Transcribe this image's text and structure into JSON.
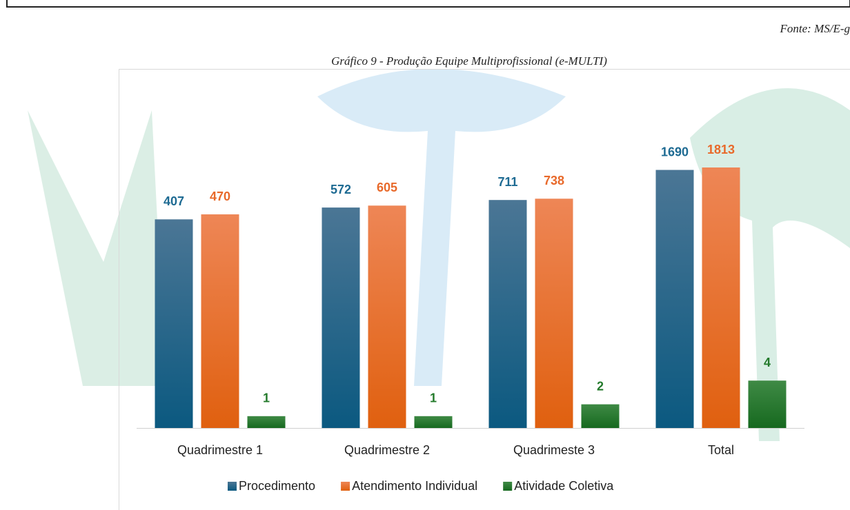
{
  "source": "Fonte: MS/E-g",
  "chart_data": {
    "type": "bar",
    "title": "Gráfico 9 - Produção Equipe Multiprofissional (e-MULTI)",
    "categories": [
      "Quadrimestre 1",
      "Quadrimestre 2",
      "Quadrimeste 3",
      "Total"
    ],
    "series": [
      {
        "name": "Procedimento",
        "color": "#1d6a92",
        "values": [
          407,
          572,
          711,
          1690
        ]
      },
      {
        "name": "Atendimento Individual",
        "color": "#e8692a",
        "values": [
          470,
          605,
          738,
          1813
        ]
      },
      {
        "name": "Atividade Coletiva",
        "color": "#237a2b",
        "values": [
          1,
          1,
          2,
          4
        ],
        "axis": "y2"
      }
    ],
    "log_scale": true,
    "ylim": [
      1,
      10000
    ],
    "y2lim": [
      0,
      27
    ],
    "legend": "bottom"
  }
}
